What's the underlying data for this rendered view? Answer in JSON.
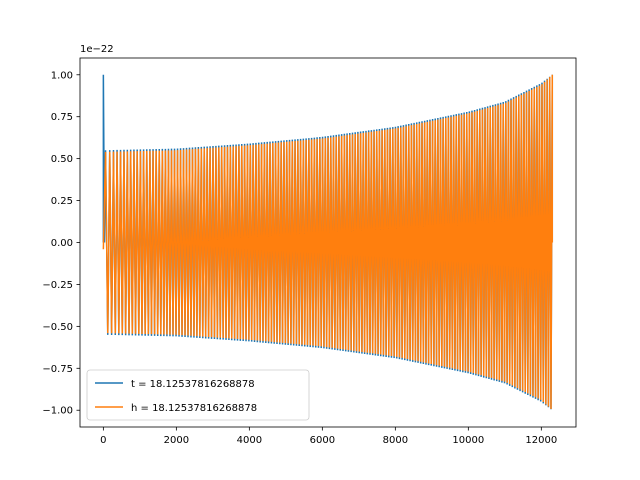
{
  "chart_data": {
    "type": "line",
    "title": "",
    "xlabel": "",
    "ylabel": "",
    "offset_label": "1e−22",
    "xlim": [
      -640,
      12950
    ],
    "ylim": [
      -1.1,
      1.1
    ],
    "x_ticks": [
      0,
      2000,
      4000,
      6000,
      8000,
      10000,
      12000
    ],
    "x_tick_labels": [
      "0",
      "2000",
      "4000",
      "6000",
      "8000",
      "10000",
      "12000"
    ],
    "y_ticks": [
      -1.0,
      -0.75,
      -0.5,
      -0.25,
      0.0,
      0.25,
      0.5,
      0.75,
      1.0
    ],
    "y_tick_labels": [
      "−1.00",
      "−0.75",
      "−0.50",
      "−0.25",
      "0.00",
      "0.25",
      "0.50",
      "0.75",
      "1.00"
    ],
    "grid": false,
    "legend_position": "lower-left",
    "series": [
      {
        "name": "t = 18.12537816268878",
        "color": "#1f77b4",
        "x_range": [
          0,
          12300
        ],
        "initial_spike": 1.0,
        "envelope": {
          "x": [
            0,
            2000,
            4000,
            6000,
            8000,
            10000,
            11000,
            12000,
            12300
          ],
          "amplitude": [
            0.55,
            0.56,
            0.59,
            0.63,
            0.69,
            0.78,
            0.84,
            0.95,
            1.0
          ]
        },
        "oscillation_count": 160
      },
      {
        "name": "h = 18.12537816268878",
        "color": "#ff7f0e",
        "x_range": [
          0,
          12300
        ],
        "envelope": {
          "x": [
            0,
            2000,
            4000,
            6000,
            8000,
            10000,
            11000,
            12000,
            12300
          ],
          "amplitude": [
            0.54,
            0.55,
            0.58,
            0.62,
            0.68,
            0.77,
            0.83,
            0.94,
            1.0
          ]
        },
        "oscillation_count": 160
      }
    ]
  }
}
